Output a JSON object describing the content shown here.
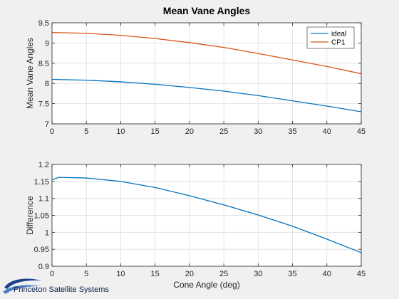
{
  "chart_data": [
    {
      "type": "line",
      "title": "Mean Vane Angles",
      "xlabel": "",
      "ylabel": "Mean Vane Angles",
      "xlim": [
        0,
        45
      ],
      "ylim": [
        7,
        9.5
      ],
      "xticks": [
        0,
        5,
        10,
        15,
        20,
        25,
        30,
        35,
        40,
        45
      ],
      "xtick_labels": [
        "0",
        "5",
        "10",
        "15",
        "20",
        "25",
        "30",
        "35",
        "40",
        "45"
      ],
      "yticks": [
        7,
        7.5,
        8,
        8.5,
        9,
        9.5
      ],
      "ytick_labels": [
        "7",
        "7.5",
        "8",
        "8.5",
        "9",
        "9.5"
      ],
      "grid": true,
      "legend_position": "top-right",
      "x": [
        0,
        5,
        10,
        15,
        20,
        25,
        30,
        35,
        40,
        45
      ],
      "series": [
        {
          "name": "ideal",
          "color": "#0072bd",
          "values": [
            8.1,
            8.08,
            8.04,
            7.98,
            7.9,
            7.81,
            7.7,
            7.57,
            7.44,
            7.3
          ]
        },
        {
          "name": "CP1",
          "color": "#d95319",
          "values": [
            9.26,
            9.24,
            9.19,
            9.11,
            9.01,
            8.89,
            8.74,
            8.58,
            8.42,
            8.24
          ]
        }
      ]
    },
    {
      "type": "line",
      "title": "",
      "xlabel": "Cone Angle (deg)",
      "ylabel": "Difference",
      "xlim": [
        0,
        45
      ],
      "ylim": [
        0.9,
        1.2
      ],
      "xticks": [
        0,
        5,
        10,
        15,
        20,
        25,
        30,
        35,
        40,
        45
      ],
      "xtick_labels": [
        "0",
        "5",
        "10",
        "15",
        "20",
        "25",
        "30",
        "35",
        "40",
        "45"
      ],
      "yticks": [
        0.9,
        0.95,
        1,
        1.05,
        1.1,
        1.15,
        1.2
      ],
      "ytick_labels": [
        "0.9",
        "0.95",
        "1",
        "1.05",
        "1.1",
        "1.15",
        "1.2"
      ],
      "grid": true,
      "x": [
        0,
        1,
        5,
        10,
        15,
        20,
        25,
        30,
        35,
        40,
        45
      ],
      "series": [
        {
          "name": "Difference",
          "color": "#0072bd",
          "values": [
            1.155,
            1.162,
            1.16,
            1.15,
            1.132,
            1.108,
            1.081,
            1.051,
            1.018,
            0.98,
            0.94
          ]
        }
      ]
    }
  ],
  "logo": {
    "text": "Princeton Satellite Systems",
    "color": "#0a1f4a"
  }
}
